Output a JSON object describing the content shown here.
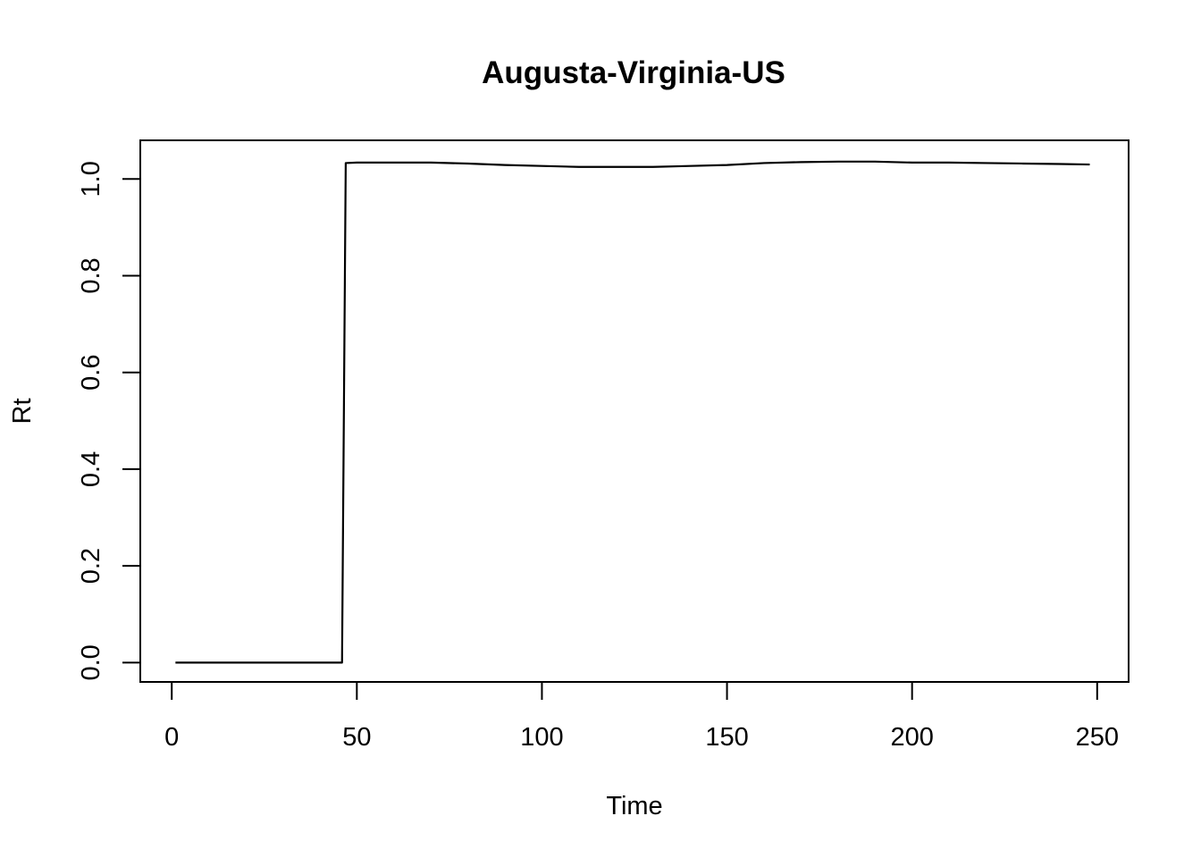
{
  "chart_data": {
    "type": "line",
    "title": "Augusta-Virginia-US",
    "xlabel": "Time",
    "ylabel": "Rt",
    "xlim": [
      -8.5,
      258.5
    ],
    "ylim": [
      -0.04,
      1.08
    ],
    "xticks": [
      0,
      50,
      100,
      150,
      200,
      250
    ],
    "xtick_labels": [
      "0",
      "50",
      "100",
      "150",
      "200",
      "250"
    ],
    "yticks": [
      0.0,
      0.2,
      0.4,
      0.6,
      0.8,
      1.0
    ],
    "ytick_labels": [
      "0.0",
      "0.2",
      "0.4",
      "0.6",
      "0.8",
      "1.0"
    ],
    "grid": false,
    "legend": "none",
    "series": [
      {
        "color": "#000000",
        "x": [
          1,
          10,
          20,
          30,
          40,
          46,
          47,
          50,
          60,
          70,
          80,
          90,
          100,
          110,
          120,
          130,
          140,
          150,
          160,
          170,
          180,
          190,
          200,
          210,
          220,
          230,
          240,
          248
        ],
        "y": [
          0,
          0,
          0,
          0,
          0,
          0,
          1.033,
          1.034,
          1.034,
          1.034,
          1.032,
          1.029,
          1.027,
          1.025,
          1.025,
          1.025,
          1.027,
          1.029,
          1.033,
          1.035,
          1.036,
          1.036,
          1.034,
          1.034,
          1.033,
          1.032,
          1.031,
          1.03
        ]
      }
    ]
  }
}
